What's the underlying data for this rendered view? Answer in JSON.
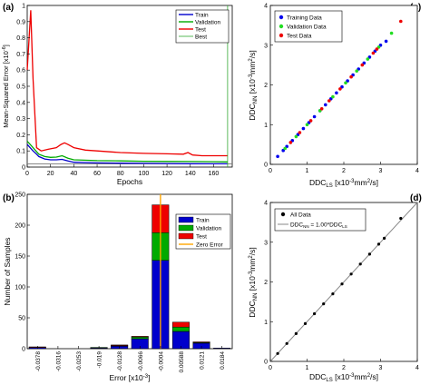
{
  "chart_data": [
    {
      "panel": "a",
      "type": "line",
      "xlabel": "Epochs",
      "ylabel": "Mean-Squared Error [x10^-6]",
      "xlim": [
        0,
        176
      ],
      "ylim": [
        0,
        1
      ],
      "xticks": [
        0,
        20,
        40,
        60,
        80,
        100,
        120,
        140,
        160
      ],
      "yticks": [
        0,
        0.1,
        0.2,
        0.3,
        0.4,
        0.5,
        0.6,
        0.7,
        0.8,
        0.9,
        1
      ],
      "grid": false,
      "legend": "top-right",
      "series": [
        {
          "name": "Train",
          "color": "#0000cc",
          "x": [
            0,
            5,
            8,
            10,
            15,
            20,
            25,
            30,
            35,
            40,
            60,
            80,
            100,
            120,
            140,
            160,
            172
          ],
          "y": [
            0.14,
            0.1,
            0.08,
            0.065,
            0.05,
            0.045,
            0.045,
            0.048,
            0.038,
            0.03,
            0.026,
            0.024,
            0.023,
            0.022,
            0.021,
            0.02,
            0.02
          ]
        },
        {
          "name": "Validation",
          "color": "#00aa00",
          "x": [
            0,
            5,
            8,
            10,
            15,
            20,
            25,
            30,
            35,
            40,
            60,
            80,
            100,
            120,
            140,
            160,
            172
          ],
          "y": [
            0.16,
            0.12,
            0.095,
            0.08,
            0.065,
            0.06,
            0.062,
            0.07,
            0.055,
            0.045,
            0.04,
            0.038,
            0.036,
            0.035,
            0.034,
            0.033,
            0.032
          ]
        },
        {
          "name": "Test",
          "color": "#ee0000",
          "x": [
            0,
            3,
            5,
            8,
            12,
            18,
            25,
            29,
            32,
            35,
            40,
            50,
            60,
            80,
            100,
            120,
            134,
            138,
            142,
            150,
            160,
            172
          ],
          "y": [
            0.6,
            0.97,
            0.55,
            0.12,
            0.1,
            0.11,
            0.12,
            0.14,
            0.15,
            0.14,
            0.12,
            0.105,
            0.1,
            0.09,
            0.085,
            0.082,
            0.08,
            0.09,
            0.075,
            0.07,
            0.07,
            0.07
          ]
        },
        {
          "name": "Best",
          "color": "#33aa33",
          "x": [
            172,
            172
          ],
          "y": [
            0,
            1
          ]
        }
      ],
      "hline": {
        "y": 0.02,
        "color": "#777777"
      }
    },
    {
      "panel": "b",
      "type": "bar",
      "stacked": true,
      "xlabel": "Error [x10^-3]",
      "ylabel": "Number of Samples",
      "categories": [
        "-0.0378",
        "-0.0316",
        "-0.0253",
        "-0.019",
        "-0.0128",
        "-0.0066",
        "-0.0004",
        "0.00588",
        "0.0121",
        "0.0184"
      ],
      "ylim": [
        0,
        250
      ],
      "yticks": [
        0,
        50,
        100,
        150,
        200,
        250
      ],
      "legend": "top-right",
      "series": [
        {
          "name": "Train",
          "color": "#0000cc",
          "values": [
            2,
            0,
            0,
            1,
            4,
            16,
            143,
            28,
            9,
            1
          ]
        },
        {
          "name": "Validation",
          "color": "#00aa00",
          "values": [
            0,
            0,
            0,
            1,
            1,
            3,
            45,
            7,
            1,
            0
          ]
        },
        {
          "name": "Test",
          "color": "#ee0000",
          "values": [
            1,
            0,
            0,
            0,
            1,
            1,
            45,
            8,
            1,
            0
          ]
        }
      ],
      "zero_error": {
        "name": "Zero Error",
        "color": "#ffa500",
        "x": 6
      }
    },
    {
      "panel": "c",
      "type": "scatter",
      "xlabel": "DDC_LS [x10^-3mm^2/s]",
      "ylabel": "DDC_NN [x10^-3mm^2/s]",
      "xlim": [
        0,
        4
      ],
      "ylim": [
        0,
        4
      ],
      "xticks": [
        0,
        1,
        2,
        3,
        4
      ],
      "yticks": [
        0,
        1,
        2,
        3,
        4
      ],
      "legend": "top-left",
      "series": [
        {
          "name": "Training Data",
          "color": "#0000ee",
          "x": [
            0.2,
            0.35,
            0.45,
            0.6,
            0.75,
            0.9,
            1.05,
            1.2,
            1.35,
            1.5,
            1.65,
            1.8,
            1.95,
            2.1,
            2.25,
            2.4,
            2.55,
            2.7,
            2.85,
            3.0,
            3.15
          ],
          "y": [
            0.2,
            0.35,
            0.45,
            0.6,
            0.75,
            0.9,
            1.05,
            1.2,
            1.35,
            1.5,
            1.65,
            1.8,
            1.95,
            2.1,
            2.25,
            2.4,
            2.55,
            2.7,
            2.85,
            3.0,
            3.1
          ]
        },
        {
          "name": "Validation Data",
          "color": "#22dd22",
          "x": [
            0.4,
            0.7,
            1.0,
            1.35,
            1.7,
            2.05,
            2.35,
            2.65,
            2.95,
            3.3
          ],
          "y": [
            0.4,
            0.7,
            1.0,
            1.35,
            1.7,
            2.05,
            2.35,
            2.65,
            2.95,
            3.3
          ]
        },
        {
          "name": "Test Data",
          "color": "#ee0000",
          "x": [
            0.55,
            0.8,
            1.1,
            1.4,
            1.6,
            1.9,
            2.2,
            2.5,
            2.8,
            2.9,
            3.55
          ],
          "y": [
            0.55,
            0.8,
            1.1,
            1.4,
            1.6,
            1.9,
            2.2,
            2.5,
            2.8,
            2.9,
            3.6
          ]
        }
      ]
    },
    {
      "panel": "d",
      "type": "scatter",
      "xlabel": "DDC_LS [x10^-3mm^2/s]",
      "ylabel": "DDC_NN [x10^-3mm^2/s]",
      "xlim": [
        0,
        4
      ],
      "ylim": [
        0,
        4
      ],
      "xticks": [
        0,
        1,
        2,
        3,
        4
      ],
      "yticks": [
        0,
        1,
        2,
        3,
        4
      ],
      "legend": "top-left",
      "series": [
        {
          "name": "All Data",
          "color": "#000000",
          "x": [
            0.2,
            0.45,
            0.7,
            0.95,
            1.2,
            1.45,
            1.7,
            1.95,
            2.2,
            2.45,
            2.7,
            2.95,
            3.1,
            3.55
          ],
          "y": [
            0.2,
            0.45,
            0.7,
            0.95,
            1.2,
            1.45,
            1.7,
            1.95,
            2.2,
            2.45,
            2.7,
            2.95,
            3.1,
            3.6
          ]
        }
      ],
      "fit": {
        "label": "DDC_NN = 1.00*DDC_LS",
        "slope": 1.0,
        "color": "#888888"
      }
    }
  ],
  "panels": {
    "a": {
      "letter": "(a)",
      "xlabel": "Epochs",
      "ylabel_pre": "Mean-Squared Error [x10",
      "ylabel_exp": "-6",
      "ylabel_post": "]",
      "legend": [
        "Train",
        "Validation",
        "Test",
        "Best"
      ],
      "xticks": [
        "0",
        "20",
        "40",
        "60",
        "80",
        "100",
        "120",
        "140",
        "160"
      ],
      "yticks": [
        "0",
        "0.1",
        "0.2",
        "0.3",
        "0.4",
        "0.5",
        "0.6",
        "0.7",
        "0.8",
        "0.9",
        "1"
      ]
    },
    "b": {
      "letter": "(b)",
      "xlabel_pre": "Error [x10",
      "xlabel_exp": "-3",
      "xlabel_post": "]",
      "ylabel": "Number of Samples",
      "legend": [
        "Train",
        "Validation",
        "Test",
        "Zero Error"
      ],
      "yticks": [
        "0",
        "50",
        "100",
        "150",
        "200",
        "250"
      ]
    },
    "c": {
      "letter": "(c)",
      "xlabel": {
        "a": "DDC",
        "sub": "LS",
        "b": " [x10",
        "sup": "-3",
        "c": "mm",
        "sup2": "2",
        "d": "/s]"
      },
      "ylabel": {
        "a": "DDC",
        "sub": "NN",
        "b": " [x10",
        "sup": "-3",
        "c": "mm",
        "sup2": "2",
        "d": "/s]"
      },
      "legend": [
        "Training Data",
        "Validation Data",
        "Test Data"
      ],
      "ticks": [
        "0",
        "1",
        "2",
        "3",
        "4"
      ]
    },
    "d": {
      "letter": "(d)",
      "xlabel": {
        "a": "DDC",
        "sub": "LS",
        "b": " [x10",
        "sup": "-3",
        "c": "mm",
        "sup2": "2",
        "d": "/s]"
      },
      "ylabel": {
        "a": "DDC",
        "sub": "NN",
        "b": " [x10",
        "sup": "-3",
        "c": "mm",
        "sup2": "2",
        "d": "/s]"
      },
      "legend_all": "All Data",
      "fit_label": {
        "a": "DDC",
        "sub1": "NN",
        "b": " = 1.00*DDC",
        "sub2": "LS"
      },
      "ticks": [
        "0",
        "1",
        "2",
        "3",
        "4"
      ]
    }
  }
}
